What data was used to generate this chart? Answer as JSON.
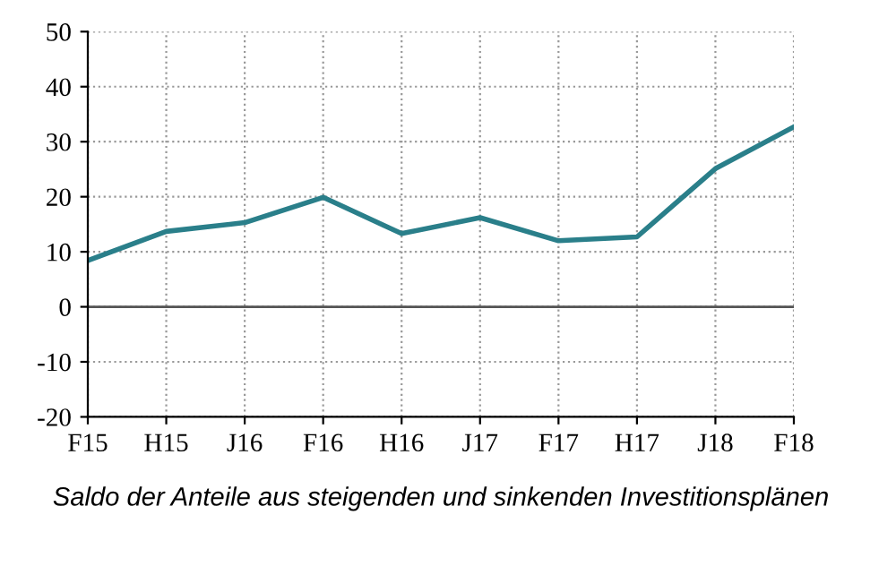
{
  "chart_data": {
    "type": "line",
    "xlabel": "Saldo der Anteile aus steigenden und sinkenden Investitionsplänen",
    "categories": [
      "F15",
      "H15",
      "J16",
      "F16",
      "H16",
      "J17",
      "F17",
      "H17",
      "J18",
      "F18"
    ],
    "series": [
      {
        "color": "#2a7f8a",
        "values": [
          8.4,
          13.7,
          15.3,
          19.9,
          13.3,
          16.2,
          12.0,
          12.7,
          25.1,
          32.7
        ]
      }
    ],
    "ylim": [
      -20,
      50
    ],
    "yticks": [
      -20,
      -10,
      0,
      10,
      20,
      30,
      40,
      50
    ],
    "grid": true,
    "marker": "none",
    "line_style": "solid"
  }
}
